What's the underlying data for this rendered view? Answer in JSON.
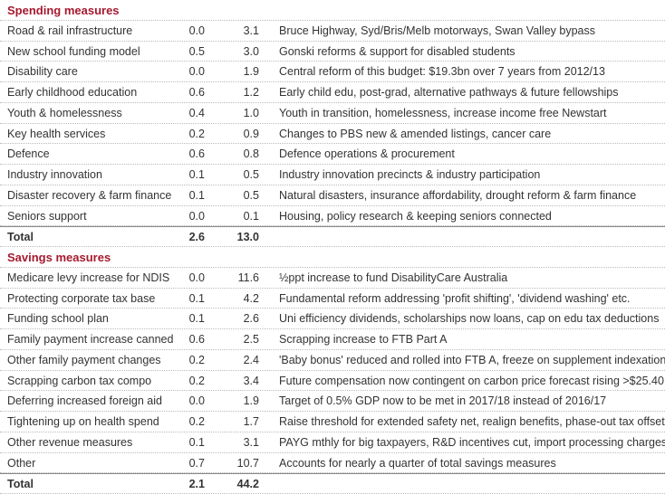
{
  "sections": [
    {
      "title": "Spending measures",
      "rows": [
        [
          "Road & rail infrastructure",
          "0.0",
          "3.1",
          "Bruce Highway, Syd/Bris/Melb motorways, Swan Valley bypass"
        ],
        [
          "New school funding model",
          "0.5",
          "3.0",
          "Gonski reforms & support for disabled students"
        ],
        [
          "Disability care",
          "0.0",
          "1.9",
          "Central reform of this budget: $19.3bn over 7 years from 2012/13"
        ],
        [
          "Early childhood education",
          "0.6",
          "1.2",
          "Early child edu, post-grad, alternative pathways & future fellowships"
        ],
        [
          "Youth & homelessness",
          "0.4",
          "1.0",
          "Youth in transition, homelessness, increase income free Newstart"
        ],
        [
          "Key health services",
          "0.2",
          "0.9",
          "Changes to PBS new & amended listings, cancer care"
        ],
        [
          "Defence",
          "0.6",
          "0.8",
          "Defence operations & procurement"
        ],
        [
          "Industry innovation",
          "0.1",
          "0.5",
          "Industry innovation precincts & industry participation"
        ],
        [
          "Disaster recovery & farm finance",
          "0.1",
          "0.5",
          "Natural disasters, insurance affordability, drought reform & farm finance"
        ],
        [
          "Seniors support",
          "0.0",
          "0.1",
          "Housing, policy research & keeping seniors connected"
        ]
      ],
      "total": [
        "Total",
        "2.6",
        "13.0"
      ]
    },
    {
      "title": "Savings measures",
      "rows": [
        [
          "Medicare levy increase for NDIS",
          "0.0",
          "11.6",
          "½ppt increase to fund DisabilityCare Australia"
        ],
        [
          "Protecting corporate tax base",
          "0.1",
          "4.2",
          "Fundamental reform addressing 'profit shifting', 'dividend washing' etc."
        ],
        [
          "Funding school plan",
          "0.1",
          "2.6",
          "Uni efficiency dividends, scholarships now loans, cap on edu tax deductions"
        ],
        [
          "Family payment increase canned",
          "0.6",
          "2.5",
          "Scrapping increase to FTB Part A"
        ],
        [
          "Other family payment changes",
          "0.2",
          "2.4",
          "'Baby bonus' reduced and rolled into FTB A, freeze on supplement indexation"
        ],
        [
          "Scrapping carbon tax compo",
          "0.2",
          "3.4",
          "Future compensation now contingent on carbon price forecast rising >$25.40"
        ],
        [
          "Deferring increased foreign aid",
          "0.0",
          "1.9",
          "Target of 0.5% GDP now to be met in 2017/18 instead of 2016/17"
        ],
        [
          "Tightening up on health spend",
          "0.2",
          "1.7",
          "Raise threshold for extended safety net, realign benefits, phase-out tax offset"
        ],
        [
          "Other revenue measures",
          "0.1",
          "3.1",
          "PAYG mthly for big taxpayers, R&D incentives cut, import processing charges"
        ],
        [
          "Other",
          "0.7",
          "10.7",
          "Accounts for nearly a quarter of total savings measures"
        ]
      ],
      "total": [
        "Total",
        "2.1",
        "44.2"
      ]
    }
  ]
}
